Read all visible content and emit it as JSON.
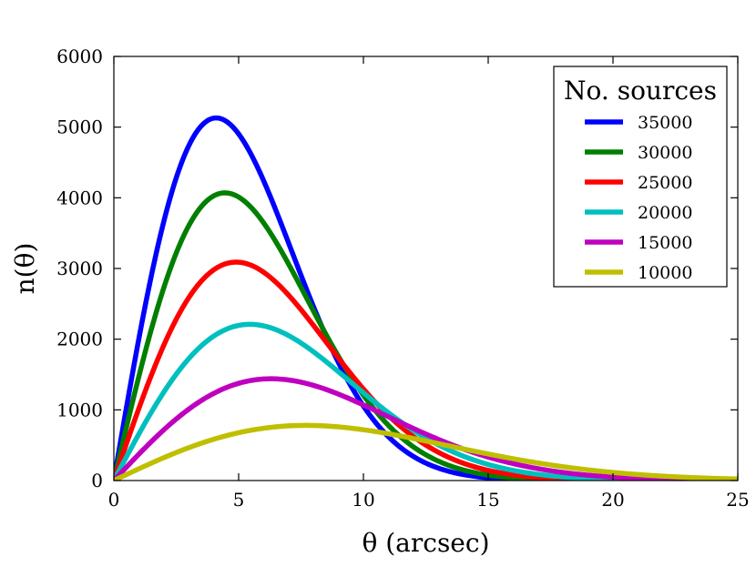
{
  "chart_data": {
    "type": "line",
    "title": "",
    "xlabel": "θ (arcsec)",
    "ylabel": "n(θ)",
    "xlim": [
      0,
      25
    ],
    "ylim": [
      0,
      6000
    ],
    "xticks": [
      0,
      5,
      10,
      15,
      20,
      25
    ],
    "yticks": [
      0,
      1000,
      2000,
      3000,
      4000,
      5000,
      6000
    ],
    "grid": false,
    "legend": {
      "title": "No. sources",
      "position": "top-right"
    },
    "series": [
      {
        "name": "35000",
        "color": "#0000ff",
        "peak_x": 4.1,
        "peak_y": 5130
      },
      {
        "name": "30000",
        "color": "#007f00",
        "peak_x": 4.45,
        "peak_y": 4070
      },
      {
        "name": "25000",
        "color": "#ff0000",
        "peak_x": 4.9,
        "peak_y": 3090
      },
      {
        "name": "20000",
        "color": "#00bfbf",
        "peak_x": 5.45,
        "peak_y": 2210
      },
      {
        "name": "15000",
        "color": "#bf00bf",
        "peak_x": 6.3,
        "peak_y": 1440
      },
      {
        "name": "10000",
        "color": "#bfbf00",
        "peak_x": 7.7,
        "peak_y": 780
      }
    ]
  }
}
